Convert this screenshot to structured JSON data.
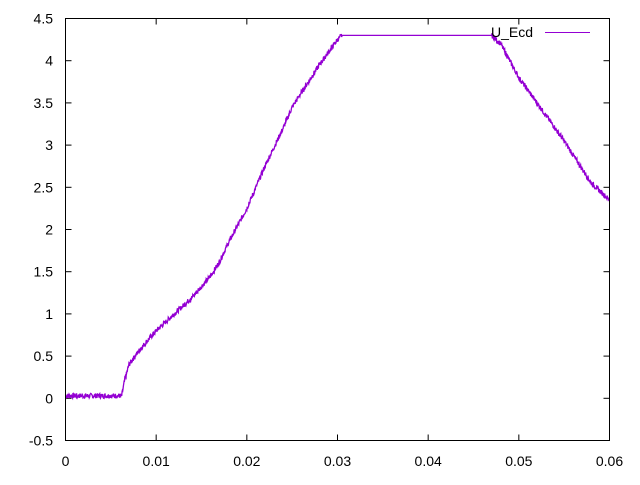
{
  "chart_data": {
    "type": "line",
    "title": "",
    "xlabel": "",
    "ylabel": "",
    "xlim": [
      0,
      0.06
    ],
    "ylim": [
      -0.5,
      4.5
    ],
    "x_ticks": [
      "0",
      "0.01",
      "0.02",
      "0.03",
      "0.04",
      "0.05",
      "0.06"
    ],
    "y_ticks": [
      "-0.5",
      "0",
      "0.5",
      "1",
      "1.5",
      "2",
      "2.5",
      "3",
      "3.5",
      "4",
      "4.5"
    ],
    "grid": false,
    "legend_position": "top-right",
    "series": [
      {
        "name": "U_Ecd",
        "color": "#9400d3",
        "x": [
          0,
          0.002,
          0.004,
          0.0062,
          0.0065,
          0.007,
          0.008,
          0.009,
          0.01,
          0.012,
          0.014,
          0.016,
          0.017,
          0.018,
          0.02,
          0.022,
          0.024,
          0.025,
          0.026,
          0.028,
          0.03,
          0.0305,
          0.035,
          0.04,
          0.045,
          0.047,
          0.048,
          0.05,
          0.052,
          0.054,
          0.055,
          0.056,
          0.058,
          0.06
        ],
        "y": [
          0.03,
          0.03,
          0.03,
          0.03,
          0.2,
          0.4,
          0.55,
          0.68,
          0.8,
          1.0,
          1.2,
          1.45,
          1.62,
          1.85,
          2.25,
          2.75,
          3.2,
          3.45,
          3.62,
          3.95,
          4.25,
          4.3,
          4.3,
          4.3,
          4.3,
          4.3,
          4.2,
          3.8,
          3.5,
          3.2,
          3.05,
          2.88,
          2.55,
          2.35
        ]
      }
    ]
  }
}
